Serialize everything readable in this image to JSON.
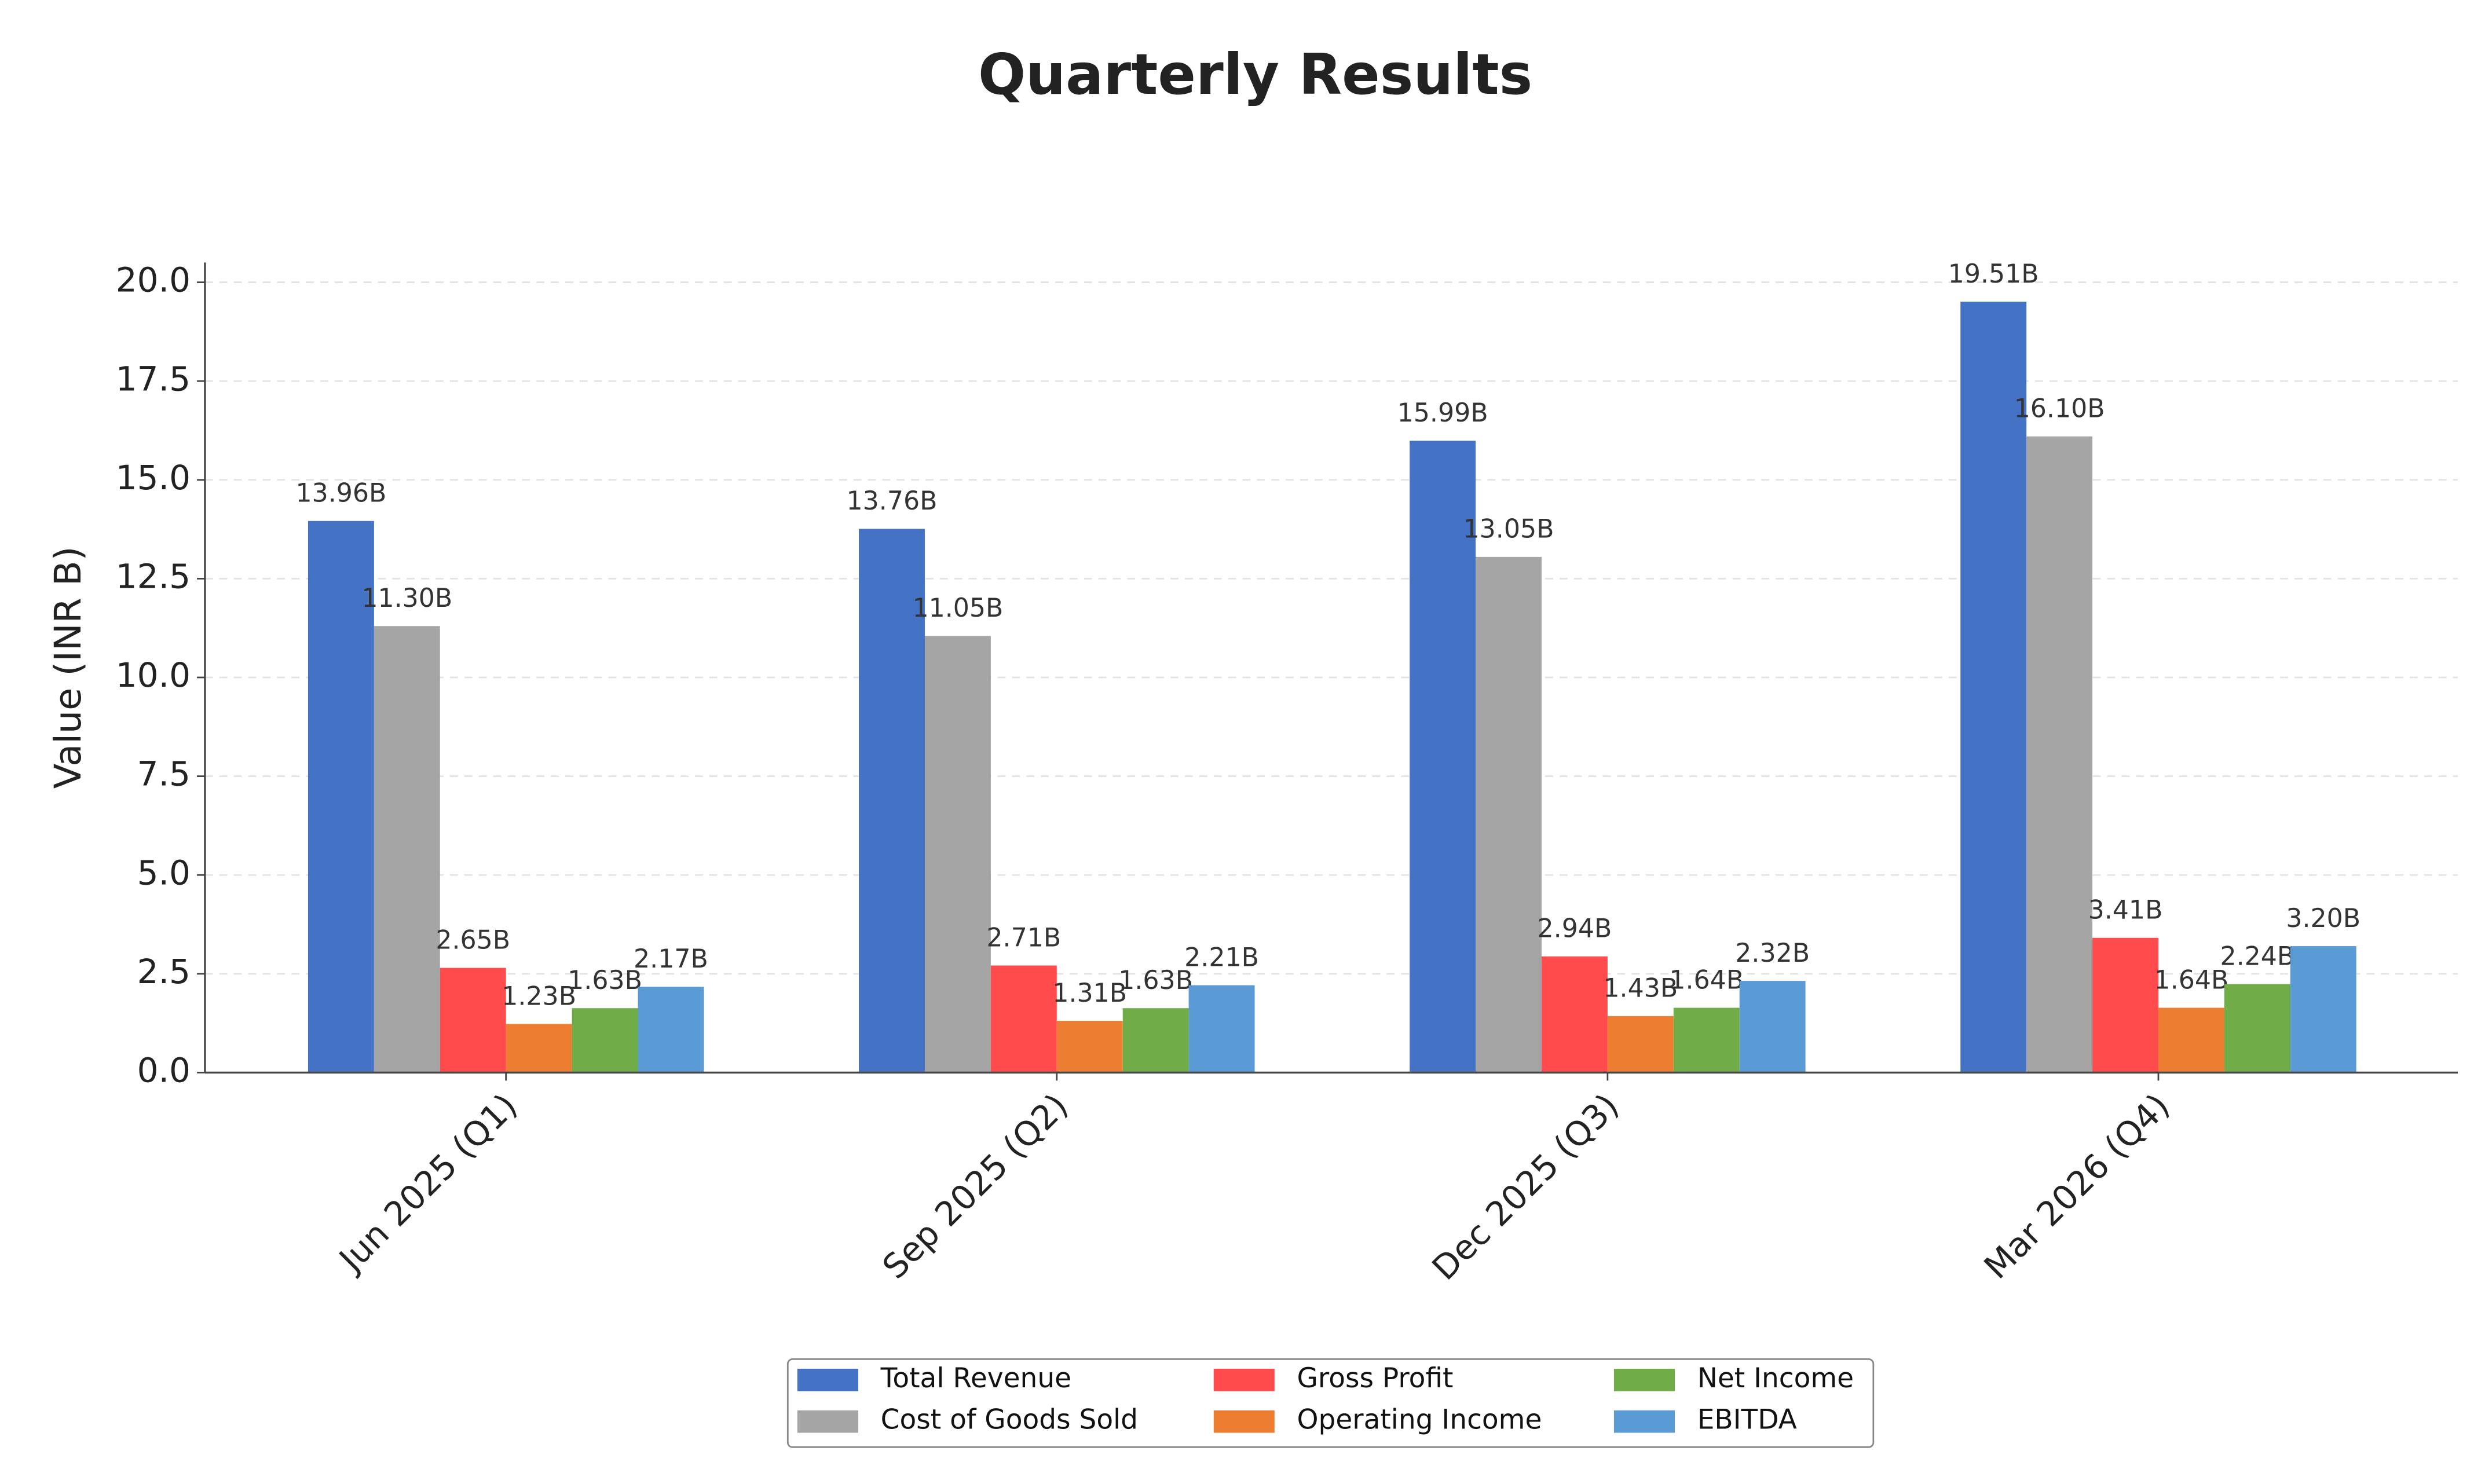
{
  "chart_data": {
    "type": "bar",
    "title": "Quarterly Results",
    "ylabel": "Value (INR B)",
    "categories": [
      "Jun 2025 (Q1)",
      "Sep 2025 (Q2)",
      "Dec 2025 (Q3)",
      "Mar 2026 (Q4)"
    ],
    "series": [
      {
        "name": "Total Revenue",
        "color": "#4472c4",
        "values": [
          13.96,
          13.76,
          15.99,
          19.51
        ],
        "value_labels": [
          "13.96B",
          "13.76B",
          "15.99B",
          "19.51B"
        ]
      },
      {
        "name": "Cost of Goods Sold",
        "color": "#a5a5a5",
        "values": [
          11.3,
          11.05,
          13.05,
          16.1
        ],
        "value_labels": [
          "11.30B",
          "11.05B",
          "13.05B",
          "16.10B"
        ]
      },
      {
        "name": "Gross Profit",
        "color": "#ff4b4b",
        "values": [
          2.65,
          2.71,
          2.94,
          3.41
        ],
        "value_labels": [
          "2.65B",
          "2.71B",
          "2.94B",
          "3.41B"
        ]
      },
      {
        "name": "Operating Income",
        "color": "#ed7d31",
        "values": [
          1.23,
          1.31,
          1.43,
          1.64
        ],
        "value_labels": [
          "1.23B",
          "1.31B",
          "1.43B",
          "1.64B"
        ]
      },
      {
        "name": "Net Income",
        "color": "#70ad47",
        "values": [
          1.63,
          1.63,
          1.64,
          2.24
        ],
        "value_labels": [
          "1.63B",
          "1.63B",
          "1.64B",
          "2.24B"
        ]
      },
      {
        "name": "EBITDA",
        "color": "#5b9bd5",
        "values": [
          2.17,
          2.21,
          2.32,
          3.2
        ],
        "value_labels": [
          "2.17B",
          "2.21B",
          "2.32B",
          "3.20B"
        ]
      }
    ],
    "ylim": [
      0,
      20.5
    ],
    "yticks": [
      {
        "value": 0,
        "label": "0.0"
      },
      2.5,
      {
        "value": 5,
        "label": "5.0"
      },
      7.5,
      {
        "value": 10,
        "label": "10.0"
      },
      12.5,
      {
        "value": 15,
        "label": "15.0"
      },
      17.5,
      {
        "value": 20,
        "label": "20.0"
      }
    ],
    "grid": true,
    "legend": "bottom"
  }
}
